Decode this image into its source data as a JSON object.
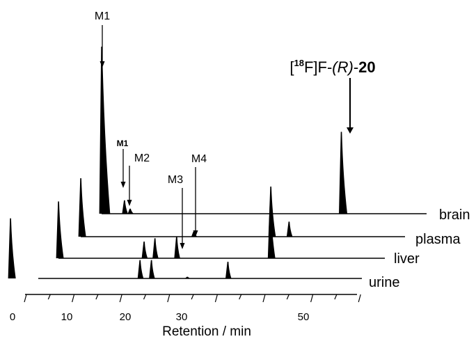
{
  "chart_data": {
    "type": "line",
    "title": "",
    "xlabel": "Retention / min",
    "ylabel": "",
    "xlim": [
      0,
      60
    ],
    "x_ticks": [
      "0",
      "10",
      "20",
      "30",
      "50"
    ],
    "grid": false,
    "legend": "none",
    "layout": "stacked-offset chromatograms",
    "series": [
      {
        "name": "brain",
        "peaks": [
          {
            "label": "M1",
            "x": 15.5,
            "height": 100
          },
          {
            "label": "M1",
            "x": 19.5,
            "height": 8
          },
          {
            "label": "M2",
            "x": 20.5,
            "height": 3
          },
          {
            "label": "[18F]F-(R)-20",
            "x": 57.5,
            "height": 49
          }
        ]
      },
      {
        "name": "plasma",
        "peaks": [
          {
            "x": 15.5,
            "height": 35
          },
          {
            "x": 35.3,
            "height": 3
          },
          {
            "x": 48.8,
            "height": 30
          },
          {
            "x": 52.0,
            "height": 9
          }
        ]
      },
      {
        "name": "liver",
        "peaks": [
          {
            "x": 15.5,
            "height": 34
          },
          {
            "x": 30.5,
            "height": 10
          },
          {
            "x": 32.4,
            "height": 12
          },
          {
            "x": 36.2,
            "height": 13
          },
          {
            "x": 52.6,
            "height": 32
          }
        ]
      },
      {
        "name": "urine",
        "peaks": [
          {
            "x": 15.5,
            "height": 36
          },
          {
            "x": 38.2,
            "height": 11
          },
          {
            "x": 40.2,
            "height": 11
          },
          {
            "x": 46.5,
            "height": 1
          },
          {
            "x": 53.6,
            "height": 10
          }
        ]
      }
    ],
    "annotations": [
      {
        "text": "M1",
        "series": "brain",
        "x": 15.5
      },
      {
        "text": "M1",
        "series": "brain",
        "x": 19.5
      },
      {
        "text": "M2",
        "series": "brain",
        "x": 20.5
      },
      {
        "text": "M3",
        "series": "urine",
        "x": 38.2
      },
      {
        "text": "M4",
        "series": "urine",
        "x": 40.2
      },
      {
        "text": "[18F]F-(R)-20",
        "series": "brain",
        "x": 57.5
      }
    ]
  }
}
